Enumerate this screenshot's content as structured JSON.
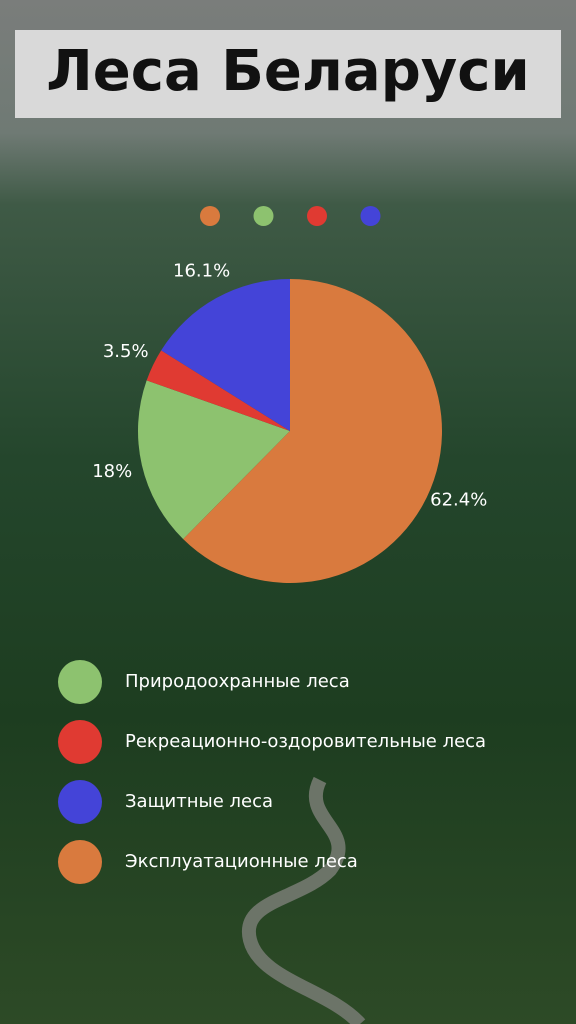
{
  "chart_data": {
    "type": "pie",
    "title": "Леса Беларуси",
    "categories": [
      "Природоохранные леса",
      "Рекреационно-оздоровительные леса",
      "Защитные леса",
      "Эксплуатационные леса"
    ],
    "values": [
      18,
      3.5,
      16.1,
      62.4
    ],
    "value_labels": [
      "18%",
      "3.5%",
      "16.1%",
      "62.4%"
    ],
    "colors": [
      "#8dc26f",
      "#e03a32",
      "#4444d8",
      "#d97a3e"
    ]
  }
}
